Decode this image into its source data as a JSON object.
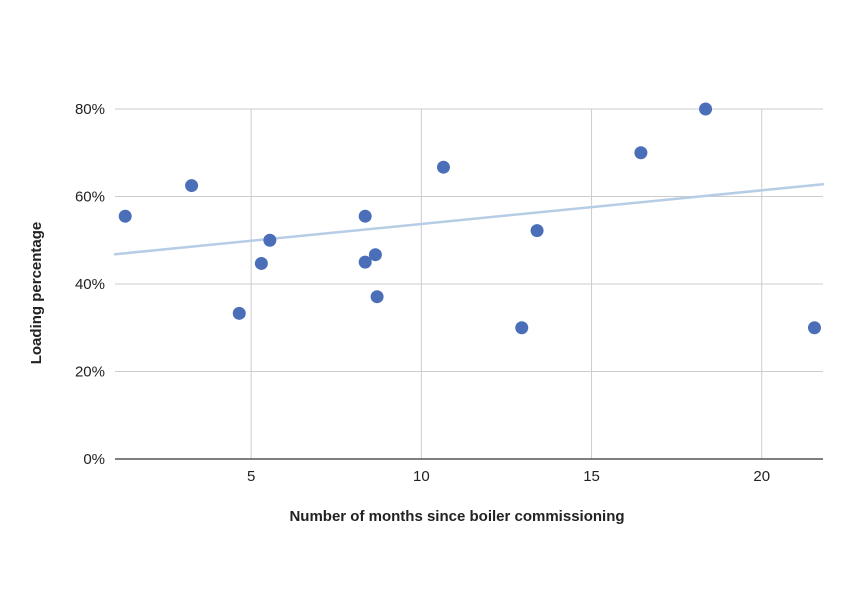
{
  "chart_data": {
    "type": "scatter",
    "title": "",
    "xlabel": "Number of months since boiler commissioning",
    "ylabel": "Loading percentage",
    "xlim": [
      1,
      21.8
    ],
    "ylim": [
      0,
      80
    ],
    "x_ticks": [
      5,
      10,
      15,
      20
    ],
    "y_ticks": [
      0,
      20,
      40,
      60,
      80
    ],
    "y_tick_labels": [
      "0%",
      "20%",
      "40%",
      "60%",
      "80%"
    ],
    "grid": true,
    "legend": "none",
    "series": [
      {
        "color": "#4a6fb8",
        "points": [
          {
            "x": 1.3,
            "y": 55.5
          },
          {
            "x": 3.25,
            "y": 62.5
          },
          {
            "x": 4.65,
            "y": 33.3
          },
          {
            "x": 5.3,
            "y": 44.7
          },
          {
            "x": 5.55,
            "y": 50
          },
          {
            "x": 8.35,
            "y": 55.5
          },
          {
            "x": 8.35,
            "y": 45
          },
          {
            "x": 8.65,
            "y": 46.7
          },
          {
            "x": 8.7,
            "y": 37.1
          },
          {
            "x": 10.65,
            "y": 66.7
          },
          {
            "x": 12.95,
            "y": 30
          },
          {
            "x": 13.4,
            "y": 52.2
          },
          {
            "x": 16.45,
            "y": 70
          },
          {
            "x": 18.35,
            "y": 80
          },
          {
            "x": 21.55,
            "y": 30
          }
        ]
      }
    ],
    "trendline": {
      "type": "linear",
      "color": "#b7cde6",
      "start": {
        "x": 1,
        "y": 46.8
      },
      "end": {
        "x": 21.8,
        "y": 62.8
      }
    },
    "colors": {
      "grid": "#cccccc",
      "axis": "#333333",
      "plot_background": "#ffffff"
    }
  }
}
